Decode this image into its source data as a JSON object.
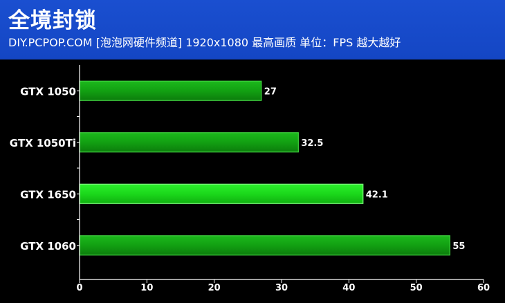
{
  "header": {
    "title": "全境封锁",
    "subtitle": "DIY.PCPOP.COM [泡泡网硬件频道] 1920x1080 最高画质  单位：FPS 越大越好",
    "background_color": "#1a4fd0"
  },
  "chart_data": {
    "type": "bar",
    "orientation": "horizontal",
    "categories": [
      "GTX  1050",
      "GTX 1050Ti",
      "GTX 1650",
      "GTX 1060"
    ],
    "values": [
      27,
      32.5,
      42.1,
      55
    ],
    "value_labels": [
      "27",
      "32.5",
      "42.1",
      "55"
    ],
    "xlim": [
      0,
      60
    ],
    "xticks": [
      0,
      10,
      20,
      30,
      40,
      50,
      60
    ],
    "grid": false,
    "highlight_index": 2,
    "colors": {
      "bar": "#18a418",
      "bar_edge": "#3fcf3f",
      "highlight": "#1fe01f",
      "highlight_edge": "#7dff7d",
      "axis": "#ffffff",
      "text": "#ffffff",
      "background": "#000000"
    }
  }
}
